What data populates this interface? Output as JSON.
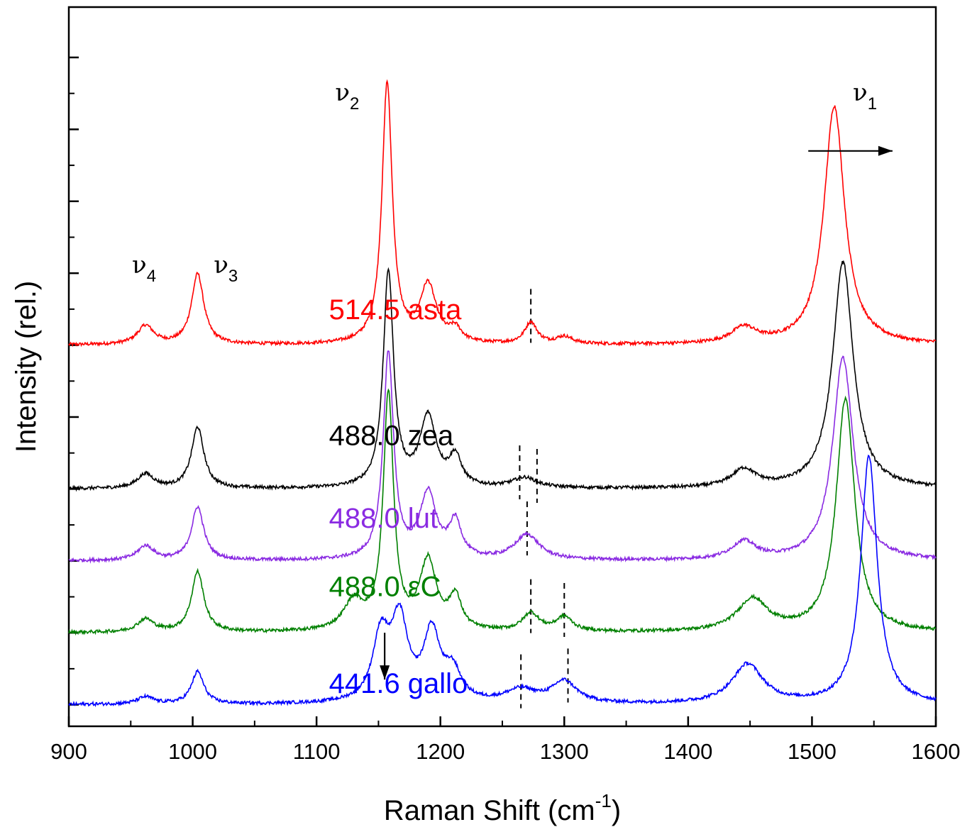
{
  "chart_data": {
    "type": "line",
    "xlabel": "Raman Shift (cm",
    "xlabel_sup": "-1",
    "xlabel_close": ")",
    "ylabel": "Intensity (rel.)",
    "xlim": [
      900,
      1600
    ],
    "x_ticks": [
      "900",
      "1000",
      "1100",
      "1200",
      "1300",
      "1400",
      "1500",
      "1600"
    ],
    "y_ticks_visible_labels": false,
    "grid": false,
    "series": [
      {
        "name": "514.5 asta",
        "color": "#ff0000",
        "baseline": 4.0,
        "label_x": 1110,
        "label_y": 4.5,
        "peaks": [
          [
            962,
            0.26,
            8
          ],
          [
            1004,
            0.98,
            6
          ],
          [
            1157,
            3.62,
            5
          ],
          [
            1190,
            0.8,
            8
          ],
          [
            1212,
            0.18,
            6
          ],
          [
            1273,
            0.3,
            6
          ],
          [
            1300,
            0.1,
            8
          ],
          [
            1445,
            0.22,
            12
          ],
          [
            1518,
            3.32,
            10
          ]
        ],
        "dashes": [
          1273
        ]
      },
      {
        "name": "488.0 zea",
        "color": "#000000",
        "baseline": 2.0,
        "label_x": 1110,
        "label_y": 2.75,
        "peaks": [
          [
            962,
            0.2,
            8
          ],
          [
            1004,
            0.85,
            6
          ],
          [
            1158,
            3.0,
            5
          ],
          [
            1190,
            0.97,
            8
          ],
          [
            1212,
            0.4,
            6
          ],
          [
            1268,
            0.14,
            12
          ],
          [
            1445,
            0.25,
            12
          ],
          [
            1525,
            3.15,
            10
          ]
        ],
        "dashes": [
          1264,
          1278
        ]
      },
      {
        "name": "488.0 lut",
        "color": "#8a2be2",
        "baseline": 1.0,
        "label_x": 1110,
        "label_y": 1.6,
        "peaks": [
          [
            962,
            0.2,
            8
          ],
          [
            1004,
            0.74,
            6
          ],
          [
            1158,
            2.87,
            5
          ],
          [
            1190,
            0.9,
            8
          ],
          [
            1212,
            0.5,
            6
          ],
          [
            1270,
            0.35,
            12
          ],
          [
            1445,
            0.25,
            12
          ],
          [
            1525,
            2.82,
            10
          ]
        ],
        "dashes": [
          1270
        ]
      },
      {
        "name": "488.0 εC",
        "color": "#008000",
        "baseline": 0.0,
        "label_x": 1110,
        "label_y": 0.65,
        "peaks": [
          [
            962,
            0.18,
            8
          ],
          [
            1004,
            0.84,
            6
          ],
          [
            1130,
            0.4,
            10
          ],
          [
            1158,
            3.27,
            5
          ],
          [
            1190,
            0.96,
            8
          ],
          [
            1212,
            0.45,
            6
          ],
          [
            1273,
            0.25,
            8
          ],
          [
            1300,
            0.2,
            8
          ],
          [
            1452,
            0.45,
            15
          ],
          [
            1527,
            3.24,
            9
          ]
        ],
        "dashes": [
          1273,
          1300
        ]
      },
      {
        "name": "441.6 gallo",
        "color": "#0000ff",
        "baseline": -1.0,
        "label_x": 1110,
        "label_y": -0.7,
        "peaks": [
          [
            962,
            0.1,
            8
          ],
          [
            1004,
            0.45,
            6
          ],
          [
            1152,
            0.9,
            8
          ],
          [
            1167,
            1.1,
            8
          ],
          [
            1193,
            0.95,
            8
          ],
          [
            1210,
            0.4,
            8
          ],
          [
            1265,
            0.18,
            15
          ],
          [
            1300,
            0.3,
            12
          ],
          [
            1448,
            0.55,
            15
          ],
          [
            1546,
            3.45,
            8
          ]
        ],
        "dashes": [
          1265,
          1303
        ]
      }
    ],
    "mode_annotations": [
      {
        "sym": "ν",
        "sub": "4",
        "x": 951,
        "y": 5.0
      },
      {
        "sym": "ν",
        "sub": "3",
        "x": 1017,
        "y": 5.0
      },
      {
        "sym": "ν",
        "sub": "2",
        "x": 1115,
        "y": 7.4
      },
      {
        "sym": "ν",
        "sub": "1",
        "x": 1533,
        "y": 7.4
      }
    ],
    "arrows": [
      {
        "from": [
          1155,
          0.0
        ],
        "to": [
          1155,
          -0.65
        ],
        "note": "down arrow at gallo ν2"
      },
      {
        "from": [
          1497,
          6.7
        ],
        "to": [
          1565,
          6.7
        ],
        "note": "right arrow near ν1"
      }
    ]
  }
}
